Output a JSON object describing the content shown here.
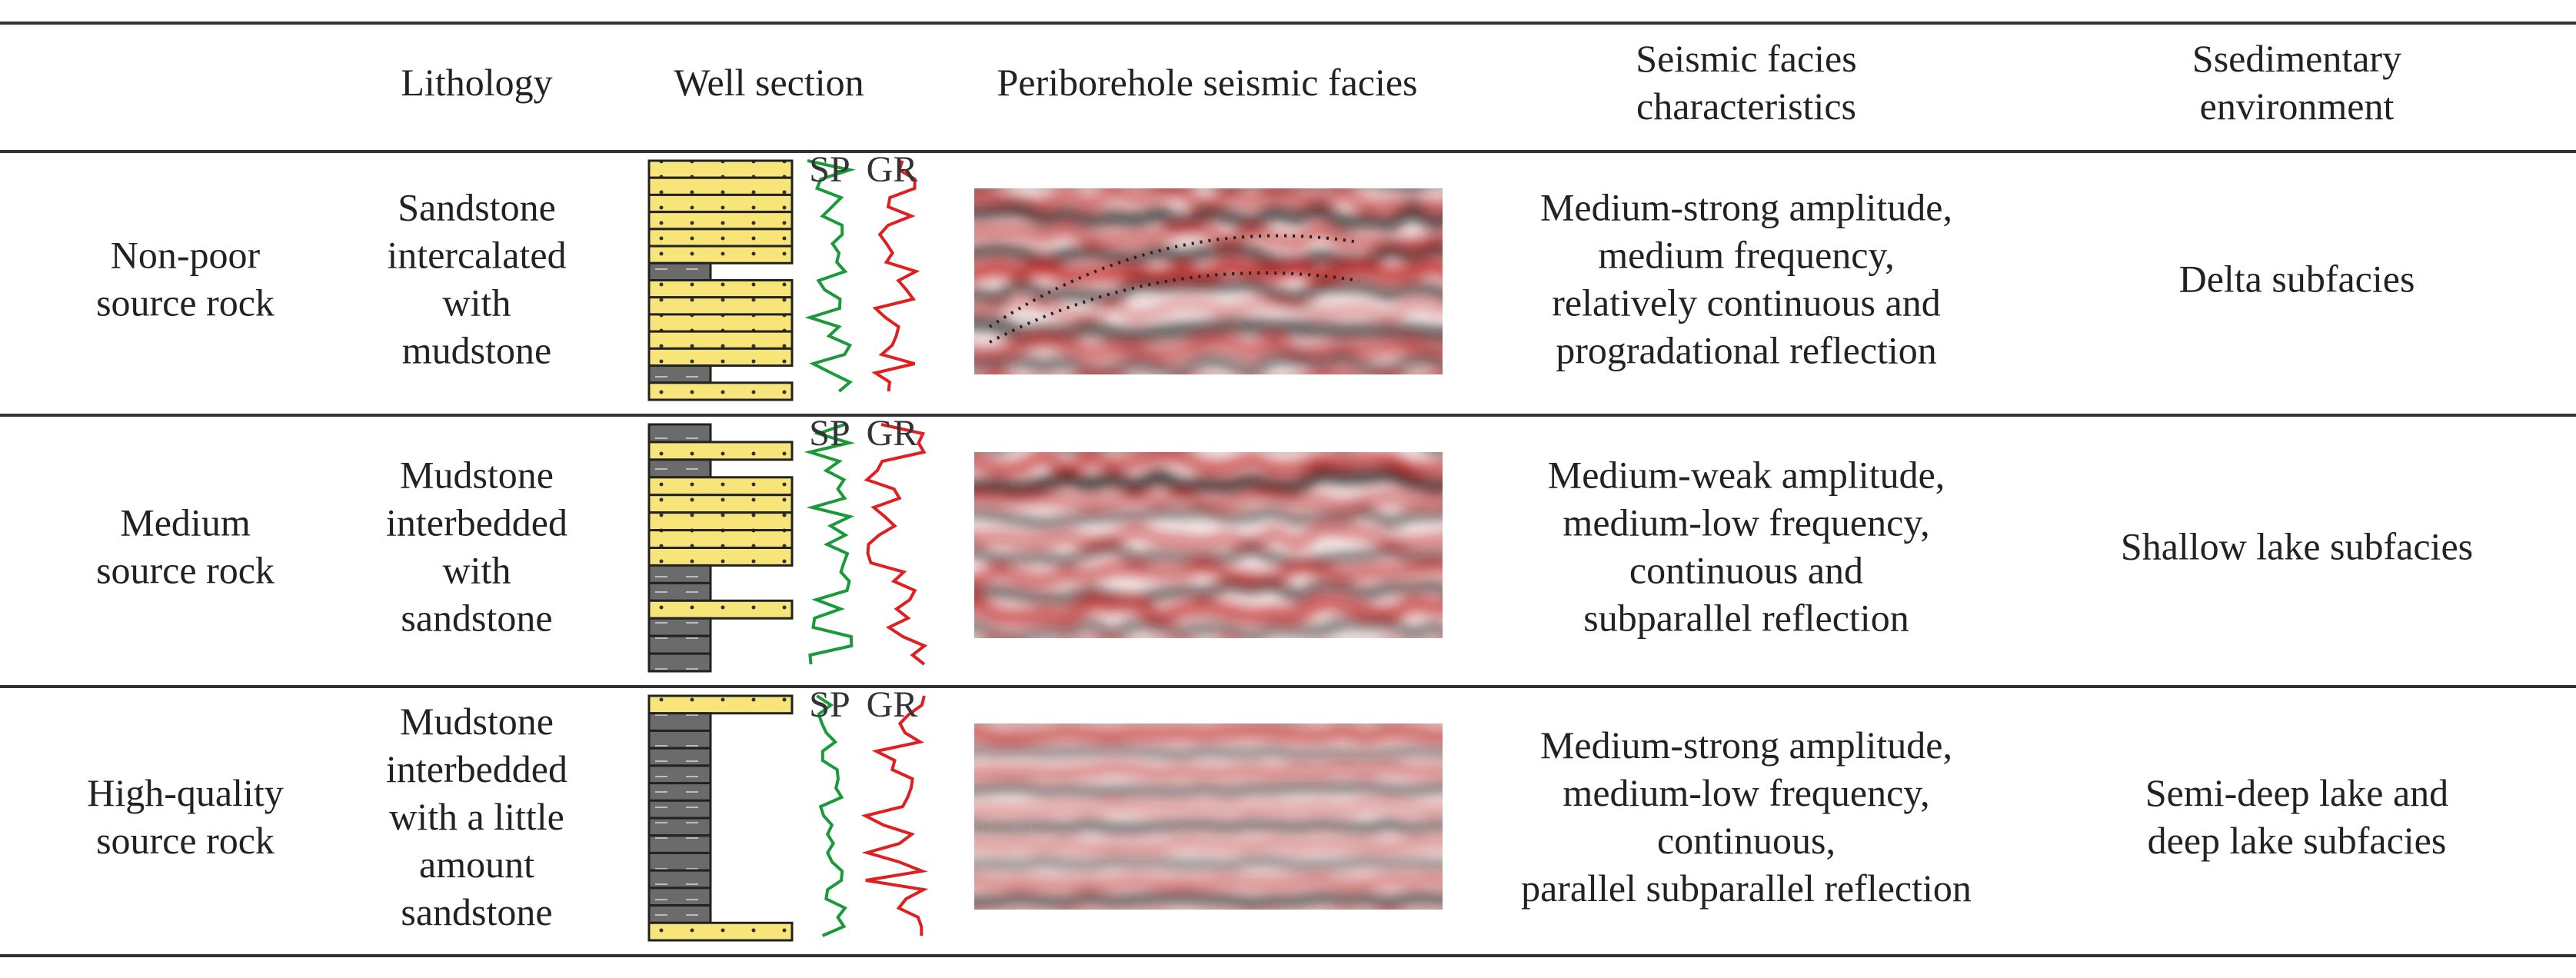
{
  "table": {
    "header": [
      [
        "Lithology"
      ],
      [
        "Well section"
      ],
      [
        "Periborehole seismic facies"
      ],
      [
        "Seismic facies",
        "characteristics"
      ],
      [
        "Ssedimentary",
        "environment"
      ]
    ],
    "rows": [
      {
        "source_rock": [
          "Non-poor",
          "source rock"
        ],
        "lithology": [
          "Sandstone",
          "intercalated",
          "with",
          "mudstone"
        ],
        "log_labels": [
          "SP",
          "GR"
        ],
        "characteristics": [
          "Medium-strong amplitude,",
          "medium frequency,",
          "relatively continuous and",
          "progradational reflection"
        ],
        "environment": [
          "Delta subfacies"
        ]
      },
      {
        "source_rock": [
          "Medium",
          "source rock"
        ],
        "lithology": [
          "Mudstone",
          "interbedded",
          "with",
          "sandstone"
        ],
        "log_labels": [
          "SP",
          "GR"
        ],
        "characteristics": [
          "Medium-weak amplitude,",
          "medium-low frequency,",
          "continuous and",
          "subparallel reflection"
        ],
        "environment": [
          "Shallow lake subfacies"
        ]
      },
      {
        "source_rock": [
          "High-quality",
          "source rock"
        ],
        "lithology": [
          "Mudstone",
          "interbedded",
          "with a little",
          "amount",
          "sandstone"
        ],
        "log_labels": [
          "SP",
          "GR"
        ],
        "characteristics": [
          "Medium-strong amplitude,",
          "medium-low frequency,",
          "continuous,",
          "parallel subparallel reflection"
        ],
        "environment": [
          "Semi-deep lake and",
          "deep lake subfacies"
        ]
      }
    ]
  }
}
